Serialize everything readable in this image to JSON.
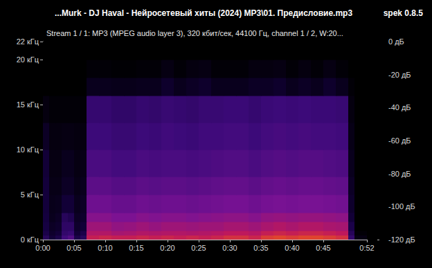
{
  "chart_data": {
    "type": "heatmap",
    "title": "...Murk - DJ Haval - Нейросетевый хиты (2024) MP3\\01. Предисловие.mp3",
    "subtitle": "Stream 1 / 1: MP3 (MPEG audio layer 3), 320 кбит/сек, 44100 Гц, channel 1 / 2, W:20...",
    "annotations": [
      "spek 0.8.5"
    ],
    "xlim": [
      0,
      52
    ],
    "xticks": [
      {
        "value": 0,
        "label": "0:00"
      },
      {
        "value": 5,
        "label": "0:05"
      },
      {
        "value": 10,
        "label": "0:10"
      },
      {
        "value": 15,
        "label": "0:15"
      },
      {
        "value": 20,
        "label": "0:20"
      },
      {
        "value": 25,
        "label": "0:25"
      },
      {
        "value": 30,
        "label": "0:30"
      },
      {
        "value": 35,
        "label": "0:35"
      },
      {
        "value": 40,
        "label": "0:40"
      },
      {
        "value": 45,
        "label": "0:45"
      },
      {
        "value": 52,
        "label": "0:52"
      }
    ],
    "ylim": [
      0,
      22
    ],
    "yticks": [
      {
        "value": 0,
        "label": "0 кГц"
      },
      {
        "value": 5,
        "label": "5 кГц"
      },
      {
        "value": 10,
        "label": "10 кГц"
      },
      {
        "value": 15,
        "label": "15 кГц"
      },
      {
        "value": 20,
        "label": "20 кГц"
      },
      {
        "value": 22,
        "label": "22 кГц"
      }
    ],
    "grid": false,
    "x_bins": [
      0,
      1,
      2,
      3,
      4,
      5,
      6,
      7,
      9,
      11,
      13,
      15,
      17,
      19,
      21,
      23,
      25,
      27,
      29,
      31,
      33,
      35,
      37,
      39,
      41,
      43,
      45,
      47,
      49,
      50,
      52
    ],
    "y_bins": [
      0,
      0.5,
      1,
      2,
      3,
      5,
      7,
      10,
      13,
      16,
      18,
      20,
      22
    ],
    "cells": [
      [
        -95,
        -105,
        -100,
        -85,
        -80,
        -100,
        -95,
        -50,
        -48,
        -50,
        -50,
        -48,
        -50,
        -48,
        -50,
        -48,
        -50,
        -48,
        -45,
        -45,
        -48,
        -42,
        -40,
        -42,
        -40,
        -40,
        -42,
        -45,
        -90,
        -115
      ],
      [
        -100,
        -108,
        -105,
        -90,
        -88,
        -105,
        -100,
        -55,
        -55,
        -58,
        -57,
        -55,
        -56,
        -55,
        -55,
        -56,
        -55,
        -54,
        -52,
        -52,
        -54,
        -50,
        -48,
        -50,
        -48,
        -48,
        -50,
        -52,
        -95,
        -118
      ],
      [
        -102,
        -110,
        -108,
        -92,
        -92,
        -108,
        -105,
        -60,
        -60,
        -63,
        -62,
        -60,
        -62,
        -60,
        -60,
        -61,
        -60,
        -60,
        -58,
        -58,
        -60,
        -57,
        -55,
        -57,
        -55,
        -55,
        -57,
        -58,
        -100,
        -120
      ],
      [
        -103,
        -112,
        -110,
        -95,
        -98,
        -110,
        -108,
        -66,
        -66,
        -68,
        -68,
        -66,
        -67,
        -66,
        -66,
        -67,
        -66,
        -65,
        -64,
        -64,
        -66,
        -63,
        -62,
        -63,
        -62,
        -62,
        -63,
        -64,
        -105,
        -120
      ],
      [
        -104,
        -113,
        -112,
        -105,
        -105,
        -112,
        -110,
        -72,
        -72,
        -74,
        -74,
        -72,
        -73,
        -72,
        -72,
        -73,
        -72,
        -71,
        -70,
        -70,
        -72,
        -70,
        -69,
        -70,
        -69,
        -69,
        -70,
        -71,
        -108,
        -120
      ],
      [
        -104,
        -114,
        -114,
        -110,
        -110,
        -114,
        -112,
        -77,
        -77,
        -79,
        -79,
        -77,
        -78,
        -77,
        -77,
        -78,
        -77,
        -76,
        -75,
        -75,
        -77,
        -75,
        -74,
        -75,
        -74,
        -74,
        -75,
        -76,
        -110,
        -120
      ],
      [
        -105,
        -115,
        -115,
        -112,
        -112,
        -115,
        -114,
        -82,
        -82,
        -84,
        -84,
        -82,
        -83,
        -82,
        -82,
        -83,
        -82,
        -81,
        -80,
        -80,
        -82,
        -80,
        -79,
        -80,
        -79,
        -79,
        -80,
        -81,
        -112,
        -120
      ],
      [
        -110,
        -116,
        -116,
        -115,
        -115,
        -116,
        -116,
        -86,
        -86,
        -88,
        -88,
        -86,
        -87,
        -85,
        -86,
        -87,
        -85,
        -85,
        -84,
        -84,
        -86,
        -84,
        -83,
        -84,
        -83,
        -84,
        -84,
        -85,
        -114,
        -120
      ],
      [
        -116,
        -118,
        -118,
        -118,
        -118,
        -118,
        -118,
        -89,
        -89,
        -91,
        -91,
        -89,
        -90,
        -88,
        -89,
        -90,
        -88,
        -88,
        -87,
        -87,
        -89,
        -87,
        -86,
        -87,
        -86,
        -87,
        -87,
        -88,
        -116,
        -120
      ],
      [
        -120,
        -120,
        -120,
        -120,
        -120,
        -120,
        -120,
        -112,
        -112,
        -113,
        -113,
        -112,
        -112,
        -108,
        -112,
        -110,
        -108,
        -112,
        -112,
        -112,
        -110,
        -110,
        -108,
        -112,
        -110,
        -112,
        -108,
        -112,
        -118,
        -120
      ],
      [
        -120,
        -120,
        -120,
        -120,
        -120,
        -120,
        -120,
        -118,
        -118,
        -119,
        -119,
        -118,
        -118,
        -115,
        -118,
        -116,
        -115,
        -118,
        -118,
        -118,
        -116,
        -116,
        -115,
        -118,
        -116,
        -118,
        -115,
        -118,
        -120,
        -120
      ],
      [
        -120,
        -120,
        -120,
        -120,
        -120,
        -120,
        -120,
        -120,
        -120,
        -120,
        -120,
        -120,
        -120,
        -120,
        -120,
        -120,
        -120,
        -120,
        -120,
        -120,
        -120,
        -120,
        -120,
        -120,
        -120,
        -120,
        -120,
        -120,
        -120,
        -120
      ]
    ],
    "colorbar": {
      "range": [
        -120,
        0
      ],
      "ticks": [
        {
          "value": 0,
          "label": "0 дБ"
        },
        {
          "value": -20,
          "label": "-20 дБ"
        },
        {
          "value": -40,
          "label": "-40 дБ"
        },
        {
          "value": -60,
          "label": "-60 дБ"
        },
        {
          "value": -80,
          "label": "-80 дБ"
        },
        {
          "value": -100,
          "label": "-100 дБ"
        },
        {
          "value": -120,
          "label": "-120 дБ"
        }
      ]
    }
  }
}
